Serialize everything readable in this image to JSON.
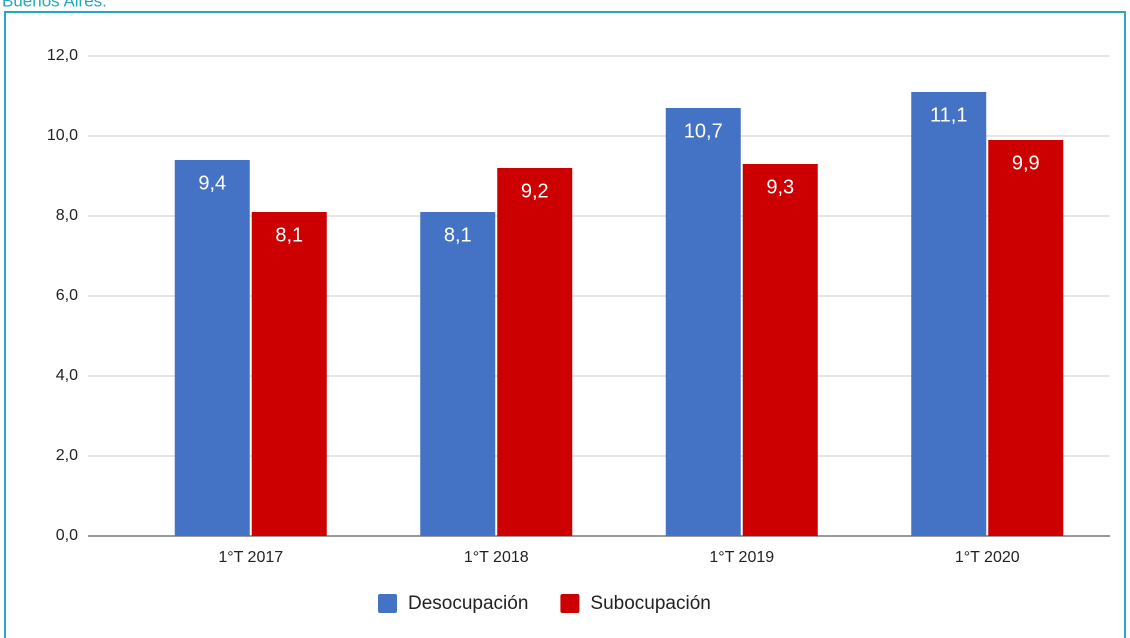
{
  "chart_data": {
    "type": "bar",
    "title": "Buenos Aires.",
    "categories": [
      "1°T 2017",
      "1°T 2018",
      "1°T 2019",
      "1°T 2020"
    ],
    "series": [
      {
        "name": "Desocupación",
        "color": "#4472c4",
        "values": [
          9.4,
          8.1,
          10.7,
          11.1
        ],
        "value_labels": [
          "9,4",
          "8,1",
          "10,7",
          "11,1"
        ]
      },
      {
        "name": "Subocupación",
        "color": "#cc0000",
        "values": [
          8.1,
          9.2,
          9.3,
          9.9
        ],
        "value_labels": [
          "8,1",
          "9,2",
          "9,3",
          "9,9"
        ]
      }
    ],
    "ylim": [
      0,
      12
    ],
    "yticks": [
      {
        "value": 0,
        "label": "0,0"
      },
      {
        "value": 2,
        "label": "2,0"
      },
      {
        "value": 4,
        "label": "4,0"
      },
      {
        "value": 6,
        "label": "6,0"
      },
      {
        "value": 8,
        "label": "8,0"
      },
      {
        "value": 10,
        "label": "10,0"
      },
      {
        "value": 12,
        "label": "12,0"
      }
    ],
    "grid": true,
    "legend": "bottom"
  }
}
